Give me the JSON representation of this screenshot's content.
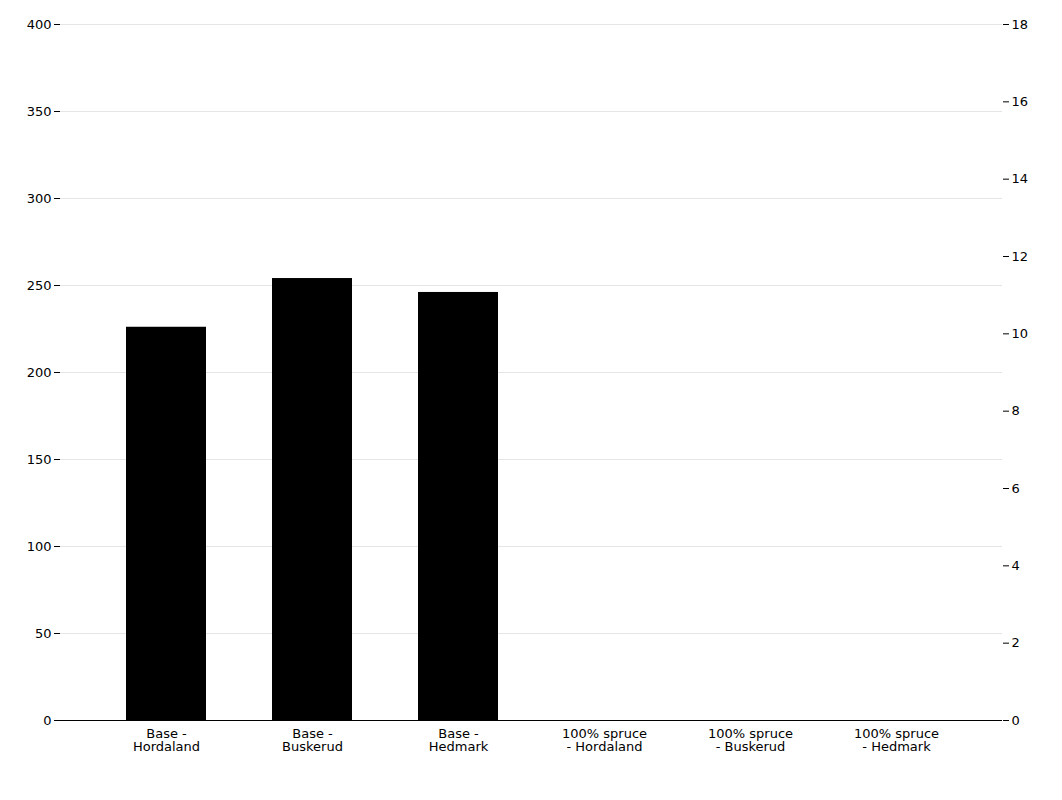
{
  "chart_data": {
    "type": "bar",
    "categories": [
      "Base -\nHordaland",
      "Base -\nBuskerud",
      "Base -\nHedmark",
      "100% spruce\n- Hordaland",
      "100% spruce\n- Buskerud",
      "100% spruce\n- Hedmark"
    ],
    "values": [
      226,
      254,
      246,
      0,
      0,
      0
    ],
    "ylim": [
      0,
      400
    ],
    "yticks": [
      0,
      50,
      100,
      150,
      200,
      250,
      300,
      350,
      400
    ],
    "y2lim": [
      0,
      18
    ],
    "y2ticks": [
      0,
      2,
      4,
      6,
      8,
      10,
      12,
      14,
      16,
      18
    ],
    "grid": true
  }
}
